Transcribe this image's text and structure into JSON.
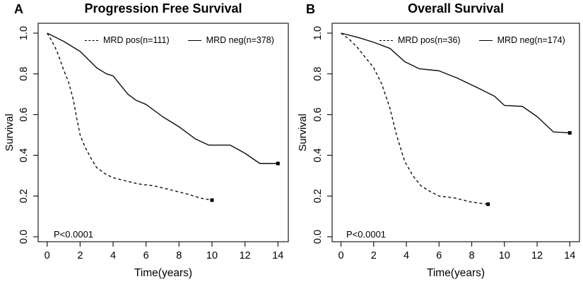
{
  "figure": {
    "background_color": "#ffffff",
    "line_color": "#000000",
    "description": "Two-panel Kaplan-Meier survival curves comparing MRD positive vs MRD negative patients"
  },
  "chart_data": [
    {
      "type": "line",
      "panel_label": "A",
      "title": "Progression Free Survival",
      "xlabel": "Time(years)",
      "ylabel": "Survival",
      "pvalue": "P<0.0001",
      "xlim": [
        0,
        14
      ],
      "ylim": [
        0.0,
        1.0
      ],
      "xticks": [
        "0",
        "2",
        "4",
        "6",
        "8",
        "10",
        "12",
        "14"
      ],
      "yticks": [
        "0.0",
        "0.2",
        "0.4",
        "0.6",
        "0.8",
        "1.0"
      ],
      "grid": false,
      "legend_position": "top-inside",
      "series": [
        {
          "name": "MRD pos(n=111)",
          "line_style": "dashed",
          "end_marker": "filled-square",
          "points": [
            [
              0,
              1.0
            ],
            [
              0.3,
              0.96
            ],
            [
              0.6,
              0.91
            ],
            [
              1.0,
              0.82
            ],
            [
              1.3,
              0.76
            ],
            [
              1.6,
              0.67
            ],
            [
              1.8,
              0.58
            ],
            [
              2.0,
              0.5
            ],
            [
              2.3,
              0.44
            ],
            [
              2.7,
              0.38
            ],
            [
              3.0,
              0.34
            ],
            [
              3.5,
              0.31
            ],
            [
              4.0,
              0.29
            ],
            [
              4.5,
              0.28
            ],
            [
              5.5,
              0.26
            ],
            [
              6.5,
              0.25
            ],
            [
              7.5,
              0.23
            ],
            [
              8.5,
              0.21
            ],
            [
              9.3,
              0.19
            ],
            [
              10.0,
              0.18
            ]
          ]
        },
        {
          "name": "MRD neg(n=378)",
          "line_style": "solid",
          "end_marker": "filled-square",
          "points": [
            [
              0,
              1.0
            ],
            [
              1.0,
              0.96
            ],
            [
              2.0,
              0.91
            ],
            [
              3.0,
              0.83
            ],
            [
              3.6,
              0.8
            ],
            [
              4.0,
              0.79
            ],
            [
              4.9,
              0.7
            ],
            [
              5.4,
              0.67
            ],
            [
              6.0,
              0.65
            ],
            [
              7.0,
              0.59
            ],
            [
              8.0,
              0.54
            ],
            [
              9.0,
              0.48
            ],
            [
              9.8,
              0.45
            ],
            [
              11.1,
              0.45
            ],
            [
              12.0,
              0.41
            ],
            [
              12.9,
              0.36
            ],
            [
              14.0,
              0.36
            ]
          ]
        }
      ]
    },
    {
      "type": "line",
      "panel_label": "B",
      "title": "Overall Survival",
      "xlabel": "Time(years)",
      "ylabel": "Survival",
      "pvalue": "P<0.0001",
      "xlim": [
        0,
        14
      ],
      "ylim": [
        0.0,
        1.0
      ],
      "xticks": [
        "0",
        "2",
        "4",
        "6",
        "8",
        "10",
        "12",
        "14"
      ],
      "yticks": [
        "0.0",
        "0.2",
        "0.4",
        "0.6",
        "0.8",
        "1.0"
      ],
      "grid": false,
      "legend_position": "top-inside",
      "series": [
        {
          "name": "MRD pos(n=36)",
          "line_style": "dashed",
          "end_marker": "filled-square",
          "points": [
            [
              0,
              1.0
            ],
            [
              0.5,
              0.97
            ],
            [
              1.0,
              0.93
            ],
            [
              1.5,
              0.88
            ],
            [
              2.0,
              0.83
            ],
            [
              2.5,
              0.75
            ],
            [
              3.0,
              0.63
            ],
            [
              3.4,
              0.5
            ],
            [
              3.9,
              0.37
            ],
            [
              4.4,
              0.3
            ],
            [
              4.9,
              0.25
            ],
            [
              5.5,
              0.22
            ],
            [
              6.0,
              0.2
            ],
            [
              7.0,
              0.19
            ],
            [
              8.0,
              0.17
            ],
            [
              9.0,
              0.16
            ]
          ]
        },
        {
          "name": "MRD neg(n=174)",
          "line_style": "solid",
          "end_marker": "filled-square",
          "points": [
            [
              0,
              1.0
            ],
            [
              1.0,
              0.98
            ],
            [
              2.0,
              0.955
            ],
            [
              3.0,
              0.925
            ],
            [
              3.9,
              0.86
            ],
            [
              4.8,
              0.825
            ],
            [
              6.0,
              0.815
            ],
            [
              7.1,
              0.78
            ],
            [
              8.4,
              0.73
            ],
            [
              9.4,
              0.69
            ],
            [
              10.0,
              0.645
            ],
            [
              11.1,
              0.64
            ],
            [
              12.0,
              0.59
            ],
            [
              13.0,
              0.515
            ],
            [
              14.0,
              0.51
            ]
          ]
        }
      ]
    }
  ]
}
